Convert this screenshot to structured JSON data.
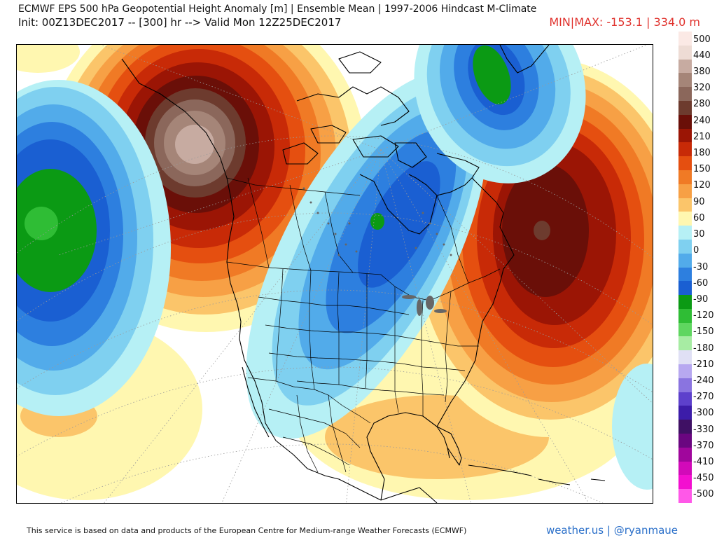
{
  "title": {
    "line1": "ECMWF EPS 500 hPa Geopotential Height Anomaly [m] | Ensemble Mean | 1997-2006 Hindcast M-Climate",
    "line2": "Init: 00Z13DEC2017 -- [300] hr --> Valid Mon 12Z25DEC2017",
    "minmax": "MIN|MAX: -153.1 | 334.0 m"
  },
  "legend": {
    "labels": [
      "500",
      "440",
      "380",
      "320",
      "280",
      "240",
      "210",
      "180",
      "150",
      "120",
      "90",
      "60",
      "30",
      "0",
      "-30",
      "-60",
      "-90",
      "-120",
      "-150",
      "-180",
      "-210",
      "-240",
      "-270",
      "-300",
      "-330",
      "-370",
      "-410",
      "-450",
      "-500"
    ],
    "colors": [
      "#fbe9e5",
      "#eedcd5",
      "#c7aba1",
      "#a58578",
      "#8b675b",
      "#6d3b2e",
      "#6a0f08",
      "#9b1505",
      "#c82a07",
      "#e54f10",
      "#f07a25",
      "#f7a045",
      "#fbc56a",
      "#fff7b0",
      "#b6f0f5",
      "#7fd0f0",
      "#52abea",
      "#2d7fdf",
      "#1a5fd2",
      "#0b9a14",
      "#2fbd35",
      "#5fd660",
      "#a7eca3",
      "#e0e0f5",
      "#b7a8f0",
      "#8a74e0",
      "#5d40cc",
      "#3c1ca9",
      "#3f1064",
      "#6a0680",
      "#a0069c",
      "#d20ab9",
      "#f30fd0",
      "#ff58e8"
    ]
  },
  "footer": {
    "credit": "This service is based on data and products of the European Centre for Medium-range Weather Forecasts (ECMWF)",
    "brand": "weather.us | @ryanmaue"
  },
  "map": {
    "highs": [
      {
        "region": "Pacific Northwest / Alaska",
        "peak": 334
      },
      {
        "region": "North Atlantic",
        "peak": 240
      }
    ],
    "lows": [
      {
        "region": "North Pacific",
        "peak": -150
      },
      {
        "region": "Hudson Bay / central Canada",
        "peak": -130
      },
      {
        "region": "Greenland",
        "peak": -120
      }
    ]
  }
}
